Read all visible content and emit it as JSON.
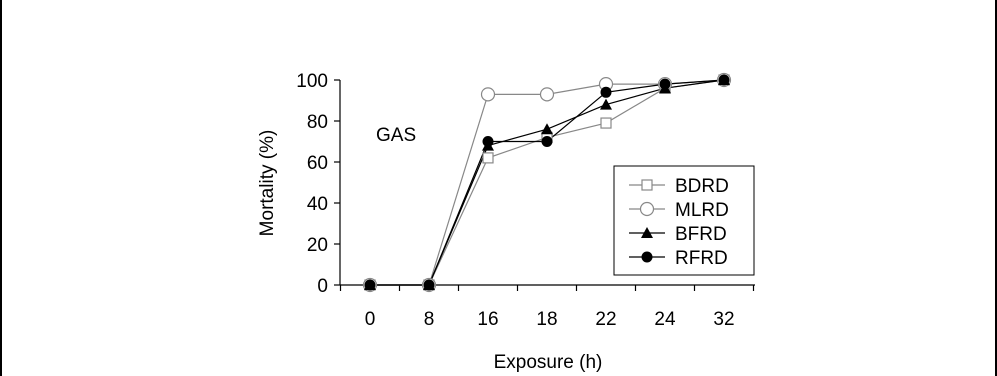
{
  "chart_data": {
    "type": "line",
    "title": "",
    "annotation": "GAS",
    "xlabel": "Exposure (h)",
    "ylabel": "Mortality (%)",
    "categories": [
      "0",
      "8",
      "16",
      "18",
      "22",
      "24",
      "32"
    ],
    "ylim": [
      0,
      100
    ],
    "yticks": [
      "0",
      "20",
      "40",
      "60",
      "80",
      "100"
    ],
    "grid": false,
    "legend_position": "right",
    "series": [
      {
        "name": "BDRD",
        "marker": "open-square",
        "color": "#888888",
        "values": [
          0,
          0,
          62,
          72,
          79,
          96,
          100
        ]
      },
      {
        "name": "MLRD",
        "marker": "open-circle",
        "color": "#888888",
        "values": [
          0,
          0,
          93,
          93,
          98,
          98,
          100
        ]
      },
      {
        "name": "BFRD",
        "marker": "filled-triangle",
        "color": "#000000",
        "values": [
          0,
          0,
          68,
          76,
          88,
          96,
          100
        ]
      },
      {
        "name": "RFRD",
        "marker": "filled-circle",
        "color": "#000000",
        "values": [
          0,
          0,
          70,
          70,
          94,
          98,
          100
        ]
      }
    ]
  }
}
